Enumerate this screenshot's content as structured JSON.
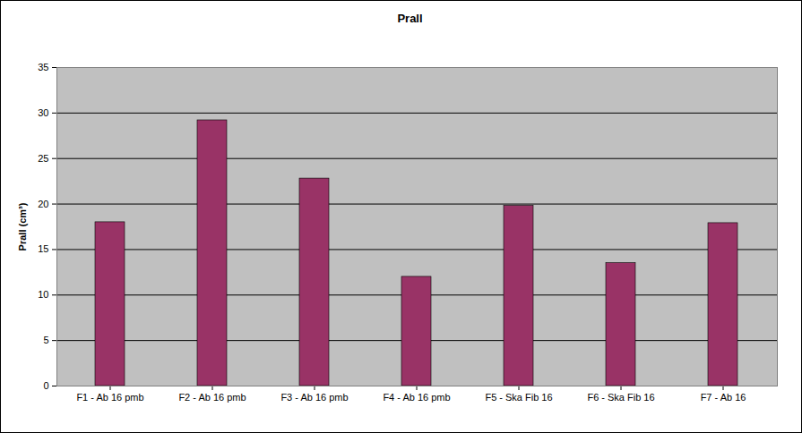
{
  "chart_data": {
    "type": "bar",
    "title": "Prall",
    "y_label": "Prall (cm³)",
    "categories": [
      "F1 - Ab 16 pmb",
      "F2 - Ab 16 pmb",
      "F3 - Ab 16 pmb",
      "F4 - Ab 16 pmb",
      "F5 - Ska Fib 16",
      "F6 - Ska Fib 16",
      "F7 - Ab 16"
    ],
    "values": [
      18,
      29.2,
      22.8,
      12,
      19.8,
      13.5,
      17.9
    ],
    "color": "#993366",
    "ylim": [
      0,
      35
    ],
    "yticks": [
      0,
      5,
      10,
      15,
      20,
      25,
      30,
      35
    ],
    "grid": true
  }
}
